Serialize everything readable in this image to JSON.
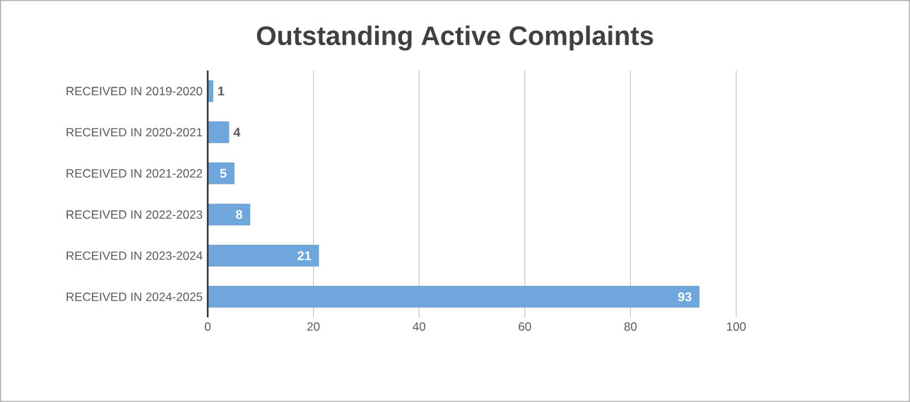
{
  "chart_data": {
    "type": "bar",
    "orientation": "horizontal",
    "title": "Outstanding Active Complaints",
    "categories": [
      "RECEIVED IN 2019-2020",
      "RECEIVED IN 2020-2021",
      "RECEIVED IN 2021-2022",
      "RECEIVED IN 2022-2023",
      "RECEIVED IN 2023-2024",
      "RECEIVED IN 2024-2025"
    ],
    "values": [
      1,
      4,
      5,
      8,
      21,
      93
    ],
    "color": "#6fa6dc",
    "xlim": [
      0,
      100
    ],
    "xticks": [
      0,
      20,
      40,
      60,
      80,
      100
    ],
    "grid": "x",
    "data_labels": true
  }
}
